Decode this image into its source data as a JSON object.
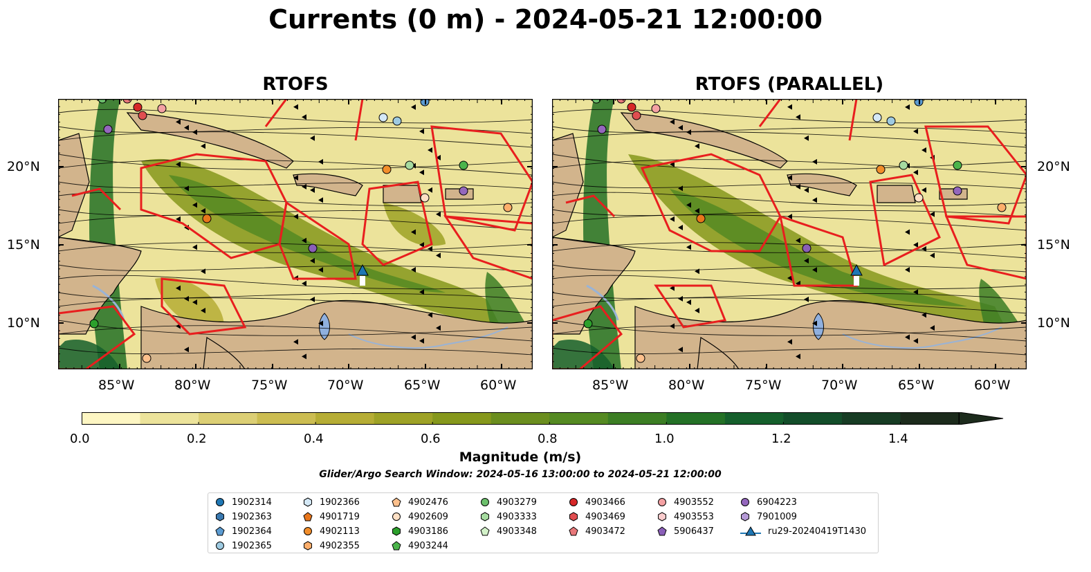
{
  "title": "Currents (0 m) - 2024-05-21 12:00:00",
  "panels": [
    {
      "id": "left",
      "title": "RTOFS"
    },
    {
      "id": "right",
      "title": "RTOFS (PARALLEL)"
    }
  ],
  "lat_ticks": [
    "20°N",
    "15°N",
    "10°N"
  ],
  "lon_ticks": [
    "85°W",
    "80°W",
    "75°W",
    "70°W",
    "65°W",
    "60°W"
  ],
  "map_extent": {
    "lon": [
      -89,
      -58
    ],
    "lat": [
      7,
      24.5
    ]
  },
  "colorbar": {
    "label": "Magnitude (m/s)",
    "ticks": [
      "0.0",
      "0.2",
      "0.4",
      "0.6",
      "0.8",
      "1.0",
      "1.2",
      "1.4"
    ],
    "range": [
      0,
      1.5
    ],
    "colors": [
      "#fdf6c3",
      "#ece39b",
      "#dccf75",
      "#ccbd52",
      "#b6ad35",
      "#9ea226",
      "#86981c",
      "#6b8e1f",
      "#558a22",
      "#3c7e24",
      "#247126",
      "#155f2c",
      "#134d2a",
      "#173c24",
      "#1c2b1c"
    ],
    "extend": "max"
  },
  "window_note": "Glider/Argo Search Window: 2024-05-16 13:00:00 to 2024-05-21 12:00:00",
  "legend": {
    "columns": [
      [
        {
          "label": "1902314",
          "shape": "circle",
          "color": "#1f77b4"
        },
        {
          "label": "1902363",
          "shape": "hexagon",
          "color": "#3a79b0"
        },
        {
          "label": "1902364",
          "shape": "pentagon",
          "color": "#5b9bd1"
        },
        {
          "label": "1902365",
          "shape": "circle",
          "color": "#9ecae1"
        }
      ],
      [
        {
          "label": "1902366",
          "shape": "hexagon",
          "color": "#d4e8f6"
        },
        {
          "label": "4901719",
          "shape": "pentagon",
          "color": "#e8761c"
        },
        {
          "label": "4902113",
          "shape": "circle",
          "color": "#f28e2b"
        },
        {
          "label": "4902355",
          "shape": "hexagon",
          "color": "#fdae6b"
        }
      ],
      [
        {
          "label": "4902476",
          "shape": "pentagon",
          "color": "#fdc08c"
        },
        {
          "label": "4902609",
          "shape": "circle",
          "color": "#fde0c5"
        },
        {
          "label": "4903186",
          "shape": "hexagon",
          "color": "#2ca02c"
        },
        {
          "label": "4903244",
          "shape": "pentagon",
          "color": "#4bb44b"
        }
      ],
      [
        {
          "label": "4903279",
          "shape": "circle",
          "color": "#6cc06c"
        },
        {
          "label": "4903333",
          "shape": "hexagon",
          "color": "#a6dba0"
        },
        {
          "label": "4903348",
          "shape": "pentagon",
          "color": "#d3f2c9"
        }
      ],
      [
        {
          "label": "4903466",
          "shape": "circle",
          "color": "#d62728"
        },
        {
          "label": "4903469",
          "shape": "hexagon",
          "color": "#e04e50"
        },
        {
          "label": "4903472",
          "shape": "pentagon",
          "color": "#e8787a"
        }
      ],
      [
        {
          "label": "4903552",
          "shape": "circle",
          "color": "#f4a1a3"
        },
        {
          "label": "4903553",
          "shape": "hexagon",
          "color": "#fbcccd"
        },
        {
          "label": "5906437",
          "shape": "pentagon",
          "color": "#8a5fb8"
        }
      ],
      [
        {
          "label": "6904223",
          "shape": "circle",
          "color": "#9467bd"
        },
        {
          "label": "7901009",
          "shape": "hexagon",
          "color": "#b59ad6"
        },
        {
          "label": "ru29-20240419T1430",
          "shape": "triangle-line",
          "color": "#1f77b4"
        }
      ]
    ]
  }
}
